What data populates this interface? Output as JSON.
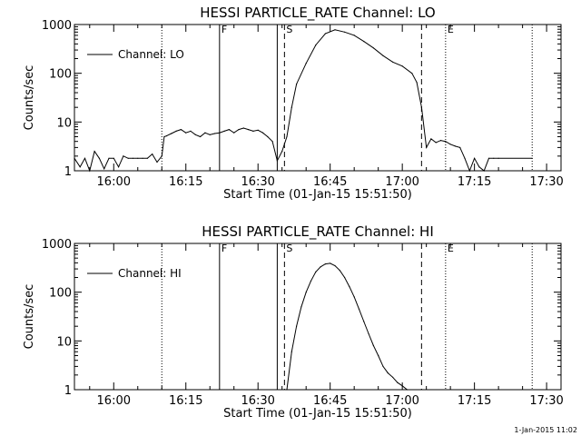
{
  "footer": {
    "timestamp": "1-Jan-2015 11:02"
  },
  "chart_data": [
    {
      "type": "line",
      "title": "HESSI PARTICLE_RATE Channel: LO",
      "xlabel": "Start Time (01-Jan-15 15:51:50)",
      "ylabel": "Counts/sec",
      "yscale": "log",
      "ylim": [
        1,
        1000
      ],
      "xlim": [
        "15:51:50",
        "17:33:00"
      ],
      "x_ticks": [
        "16:00",
        "16:15",
        "16:30",
        "16:45",
        "17:00",
        "17:15",
        "17:30"
      ],
      "y_ticks": [
        "1",
        "10",
        "100",
        "1000"
      ],
      "legend": {
        "position": "top-left",
        "entries": [
          "Channel: LO"
        ]
      },
      "grid": false,
      "markers": [
        {
          "time": "16:10:00",
          "style": "dotted",
          "label": ""
        },
        {
          "time": "16:22:00",
          "style": "solid",
          "label": "F"
        },
        {
          "time": "16:34:00",
          "style": "solid",
          "label": ""
        },
        {
          "time": "16:35:30",
          "style": "dashed",
          "label": "S"
        },
        {
          "time": "17:04:00",
          "style": "dashed",
          "label": ""
        },
        {
          "time": "17:09:00",
          "style": "dotted",
          "label": "E"
        },
        {
          "time": "17:27:00",
          "style": "dotted",
          "label": ""
        }
      ],
      "series": [
        {
          "name": "Channel: LO",
          "x": [
            "15:51:50",
            "15:53:00",
            "15:54:00",
            "15:55:00",
            "15:56:00",
            "15:57:00",
            "15:58:00",
            "15:59:00",
            "16:00:00",
            "16:01:00",
            "16:02:00",
            "16:03:00",
            "16:04:00",
            "16:05:00",
            "16:06:00",
            "16:07:00",
            "16:08:00",
            "16:09:00",
            "16:10:00",
            "16:10:30",
            "16:11:00",
            "16:12:00",
            "16:13:00",
            "16:14:00",
            "16:15:00",
            "16:16:00",
            "16:17:00",
            "16:18:00",
            "16:19:00",
            "16:20:00",
            "16:21:00",
            "16:22:00",
            "16:23:00",
            "16:24:00",
            "16:25:00",
            "16:26:00",
            "16:27:00",
            "16:28:00",
            "16:29:00",
            "16:30:00",
            "16:31:00",
            "16:32:00",
            "16:33:00",
            "16:34:00",
            "16:35:00",
            "16:36:00",
            "16:37:00",
            "16:38:00",
            "16:40:00",
            "16:42:00",
            "16:44:00",
            "16:46:00",
            "16:48:00",
            "16:50:00",
            "16:52:00",
            "16:54:00",
            "16:56:00",
            "16:58:00",
            "17:00:00",
            "17:02:00",
            "17:03:00",
            "17:04:00",
            "17:05:00",
            "17:06:00",
            "17:07:00",
            "17:08:00",
            "17:09:00",
            "17:10:00",
            "17:11:00",
            "17:12:00",
            "17:13:00",
            "17:14:00",
            "17:15:00",
            "17:16:00",
            "17:17:00",
            "17:18:00",
            "17:19:00",
            "17:20:00",
            "17:27:00"
          ],
          "values": [
            1.8,
            1.2,
            1.8,
            1.0,
            2.5,
            1.8,
            1.1,
            1.8,
            1.8,
            1.2,
            2.0,
            1.8,
            1.8,
            1.8,
            1.8,
            1.8,
            2.2,
            1.5,
            2.0,
            5.0,
            5.2,
            5.8,
            6.5,
            7.0,
            6.0,
            6.5,
            5.5,
            5.0,
            6.0,
            5.5,
            5.8,
            6.0,
            6.5,
            7.0,
            6.0,
            7.0,
            7.5,
            7.0,
            6.5,
            6.8,
            6.0,
            5.0,
            4.0,
            1.6,
            2.5,
            5.0,
            20,
            60,
            160,
            380,
            650,
            780,
            700,
            600,
            450,
            330,
            230,
            170,
            140,
            100,
            65,
            20,
            3.0,
            4.5,
            3.8,
            4.2,
            4.0,
            3.5,
            3.2,
            3.0,
            1.8,
            1.0,
            1.8,
            1.2,
            1.0,
            1.8,
            1.8,
            1.8,
            1.8
          ]
        }
      ]
    },
    {
      "type": "line",
      "title": "HESSI PARTICLE_RATE Channel: HI",
      "xlabel": "Start Time (01-Jan-15 15:51:50)",
      "ylabel": "Counts/sec",
      "yscale": "log",
      "ylim": [
        1,
        1000
      ],
      "xlim": [
        "15:51:50",
        "17:33:00"
      ],
      "x_ticks": [
        "16:00",
        "16:15",
        "16:30",
        "16:45",
        "17:00",
        "17:15",
        "17:30"
      ],
      "y_ticks": [
        "1",
        "10",
        "100",
        "1000"
      ],
      "legend": {
        "position": "top-left",
        "entries": [
          "Channel: HI"
        ]
      },
      "grid": false,
      "markers": [
        {
          "time": "16:10:00",
          "style": "dotted",
          "label": ""
        },
        {
          "time": "16:22:00",
          "style": "solid",
          "label": "F"
        },
        {
          "time": "16:34:00",
          "style": "solid",
          "label": ""
        },
        {
          "time": "16:35:30",
          "style": "dashed",
          "label": "S"
        },
        {
          "time": "17:04:00",
          "style": "dashed",
          "label": ""
        },
        {
          "time": "17:09:00",
          "style": "dotted",
          "label": "E"
        },
        {
          "time": "17:27:00",
          "style": "dotted",
          "label": ""
        }
      ],
      "series": [
        {
          "name": "Channel: HI",
          "x": [
            "16:36:00",
            "16:37:00",
            "16:38:00",
            "16:39:00",
            "16:40:00",
            "16:41:00",
            "16:42:00",
            "16:43:00",
            "16:44:00",
            "16:45:00",
            "16:46:00",
            "16:47:00",
            "16:48:00",
            "16:49:00",
            "16:50:00",
            "16:51:00",
            "16:52:00",
            "16:53:00",
            "16:54:00",
            "16:55:00",
            "16:56:00",
            "16:57:00",
            "16:58:00",
            "16:59:00",
            "17:00:00",
            "17:01:00"
          ],
          "values": [
            1.0,
            6,
            20,
            50,
            100,
            170,
            260,
            330,
            380,
            390,
            350,
            280,
            200,
            130,
            80,
            45,
            25,
            14,
            8,
            5,
            3,
            2.2,
            1.8,
            1.4,
            1.2,
            1.0
          ]
        }
      ]
    }
  ]
}
